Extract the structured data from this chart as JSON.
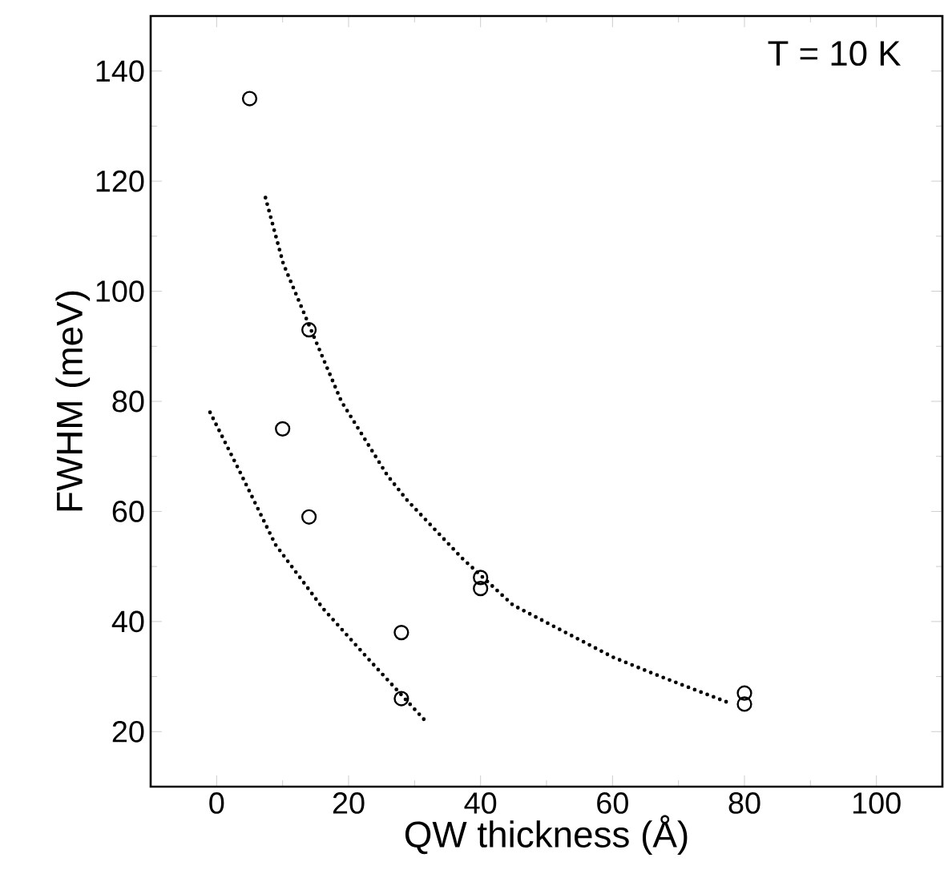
{
  "chart_data": {
    "type": "scatter",
    "xlabel": "QW thickness (Å)",
    "ylabel": "FWHM (meV)",
    "annotations": [
      "T = 10 K"
    ],
    "xlim": [
      -10,
      110
    ],
    "ylim": [
      10,
      150
    ],
    "xticks": [
      0,
      20,
      40,
      60,
      80,
      100
    ],
    "yticks": [
      20,
      40,
      60,
      80,
      100,
      120,
      140
    ],
    "series": [
      {
        "marker": "circle",
        "color": "#000000",
        "x": [
          5,
          14,
          10,
          14,
          28,
          28,
          40,
          40,
          80,
          80
        ],
        "values": [
          135,
          93,
          75,
          59,
          38,
          26,
          48,
          46,
          27,
          25
        ]
      },
      {
        "type": "line",
        "marker": "none",
        "line_style": "dotted",
        "color": "#000000",
        "x": [
          7.4,
          10.1,
          14.3,
          18.9,
          25.9,
          28.9,
          37.2,
          44.9,
          52.9,
          60.1,
          67.3,
          77.7
        ],
        "values": [
          117,
          105,
          93,
          80,
          66.5,
          62,
          51.5,
          43,
          38,
          33.5,
          30,
          25.2
        ]
      },
      {
        "type": "line",
        "marker": "none",
        "line_style": "dotted",
        "color": "#000000",
        "x": [
          -1,
          3.4,
          8.9,
          16.1,
          23.3,
          31.9
        ],
        "values": [
          78,
          67.5,
          54,
          42.4,
          32.8,
          21.6
        ]
      }
    ]
  }
}
